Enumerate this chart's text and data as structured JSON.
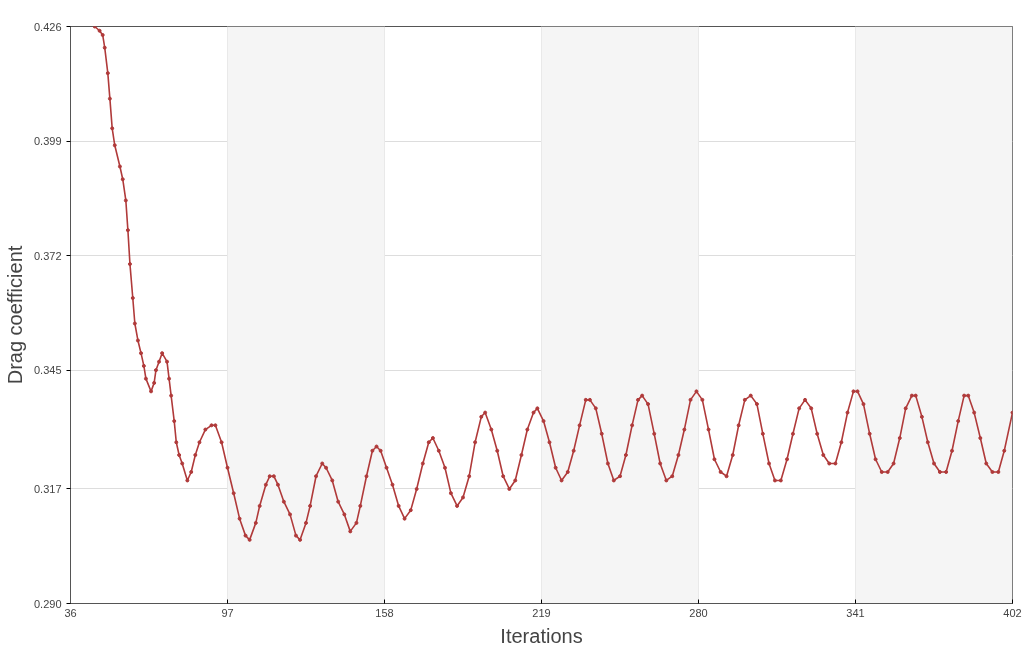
{
  "chart_data": {
    "type": "line",
    "xlabel": "Iterations",
    "ylabel": "Drag coefficient",
    "xlim": [
      36,
      402
    ],
    "xticks": [
      36,
      97,
      158,
      219,
      280,
      341,
      402
    ],
    "ylim": [
      0.29,
      0.426
    ],
    "yticks": [
      {
        "value": 0.29,
        "label": "0.290"
      },
      0.317,
      0.345,
      0.372,
      0.399,
      0.426
    ],
    "grid": true,
    "marker": "circle",
    "line_style": "solid",
    "bands": [
      {
        "axis": "x",
        "from": 97,
        "to": 158,
        "color": "#f5f5f5"
      },
      {
        "axis": "x",
        "from": 219,
        "to": 280,
        "color": "#f5f5f5"
      },
      {
        "axis": "x",
        "from": 341,
        "to": 402,
        "color": "#f5f5f5"
      }
    ],
    "series": [
      {
        "color": "#b03a3a",
        "x": [
          45.4,
          47.3,
          48.5,
          49.3,
          50.5,
          51.3,
          52.2,
          53.2,
          55.2,
          56.3,
          57.5,
          58.3,
          59.1,
          60.2,
          61.0,
          62.2,
          63.4,
          64.5,
          65.3,
          67.3,
          68.5,
          69.2,
          70.4,
          71.6,
          73.5,
          74.3,
          75.1,
          76.3,
          77.1,
          78.2,
          79.4,
          81.4,
          82.9,
          84.5,
          86.1,
          88.4,
          90.8,
          92.3,
          94.7,
          97.0,
          99.4,
          101.7,
          104.0,
          105.6,
          108.0,
          109.5,
          111.9,
          113.4,
          115.0,
          116.6,
          118.9,
          121.3,
          123.6,
          125.2,
          127.5,
          129.1,
          131.4,
          133.8,
          135.3,
          137.7,
          140.0,
          142.4,
          144.7,
          147.1,
          148.6,
          151.0,
          153.3,
          154.9,
          156.5,
          158.8,
          161.1,
          163.5,
          165.8,
          168.2,
          170.5,
          172.9,
          175.2,
          176.8,
          179.1,
          181.5,
          183.8,
          186.2,
          188.5,
          190.9,
          193.2,
          195.6,
          197.1,
          199.5,
          201.8,
          204.1,
          206.5,
          208.8,
          211.2,
          213.5,
          215.9,
          217.4,
          219.8,
          222.1,
          224.5,
          226.8,
          229.2,
          231.5,
          233.8,
          236.2,
          237.8,
          240.1,
          242.4,
          244.8,
          247.1,
          249.5,
          251.8,
          254.2,
          256.5,
          258.1,
          260.4,
          262.8,
          265.1,
          267.5,
          269.8,
          272.2,
          274.5,
          276.9,
          279.2,
          281.5,
          283.9,
          286.2,
          288.6,
          290.9,
          293.3,
          295.6,
          298.0,
          300.3,
          302.7,
          305.0,
          307.4,
          309.7,
          312.0,
          314.4,
          316.7,
          319.1,
          321.4,
          323.8,
          326.1,
          328.5,
          330.8,
          333.2,
          335.5,
          337.9,
          340.2,
          341.8,
          344.1,
          346.5,
          348.8,
          351.2,
          353.5,
          355.8,
          358.2,
          360.5,
          362.9,
          364.4,
          366.8,
          369.1,
          371.5,
          373.8,
          376.2,
          378.5,
          380.9,
          383.2,
          384.8,
          387.1,
          389.5,
          391.8,
          394.2,
          396.5,
          398.8,
          402.0
        ],
        "values": [
          0.426,
          0.425,
          0.424,
          0.421,
          0.415,
          0.409,
          0.402,
          0.398,
          0.393,
          0.39,
          0.385,
          0.378,
          0.37,
          0.362,
          0.356,
          0.352,
          0.349,
          0.346,
          0.343,
          0.34,
          0.342,
          0.345,
          0.347,
          0.349,
          0.347,
          0.343,
          0.339,
          0.333,
          0.328,
          0.325,
          0.323,
          0.319,
          0.321,
          0.325,
          0.328,
          0.331,
          0.332,
          0.332,
          0.328,
          0.322,
          0.316,
          0.31,
          0.306,
          0.305,
          0.309,
          0.313,
          0.318,
          0.32,
          0.32,
          0.318,
          0.314,
          0.311,
          0.306,
          0.305,
          0.309,
          0.313,
          0.32,
          0.323,
          0.322,
          0.319,
          0.314,
          0.311,
          0.307,
          0.309,
          0.313,
          0.32,
          0.326,
          0.327,
          0.326,
          0.322,
          0.318,
          0.313,
          0.31,
          0.312,
          0.317,
          0.323,
          0.328,
          0.329,
          0.326,
          0.322,
          0.316,
          0.313,
          0.315,
          0.32,
          0.328,
          0.334,
          0.335,
          0.331,
          0.326,
          0.32,
          0.317,
          0.319,
          0.325,
          0.331,
          0.335,
          0.336,
          0.333,
          0.328,
          0.322,
          0.319,
          0.321,
          0.326,
          0.332,
          0.338,
          0.338,
          0.336,
          0.33,
          0.323,
          0.319,
          0.32,
          0.325,
          0.332,
          0.338,
          0.339,
          0.337,
          0.33,
          0.323,
          0.319,
          0.32,
          0.325,
          0.331,
          0.338,
          0.34,
          0.338,
          0.331,
          0.324,
          0.321,
          0.32,
          0.325,
          0.332,
          0.338,
          0.339,
          0.337,
          0.33,
          0.323,
          0.319,
          0.319,
          0.324,
          0.33,
          0.336,
          0.338,
          0.336,
          0.33,
          0.325,
          0.323,
          0.323,
          0.328,
          0.335,
          0.34,
          0.34,
          0.337,
          0.33,
          0.324,
          0.321,
          0.321,
          0.323,
          0.329,
          0.336,
          0.339,
          0.339,
          0.334,
          0.328,
          0.323,
          0.321,
          0.321,
          0.326,
          0.333,
          0.339,
          0.339,
          0.335,
          0.329,
          0.323,
          0.321,
          0.321,
          0.326,
          0.335
        ]
      }
    ]
  }
}
